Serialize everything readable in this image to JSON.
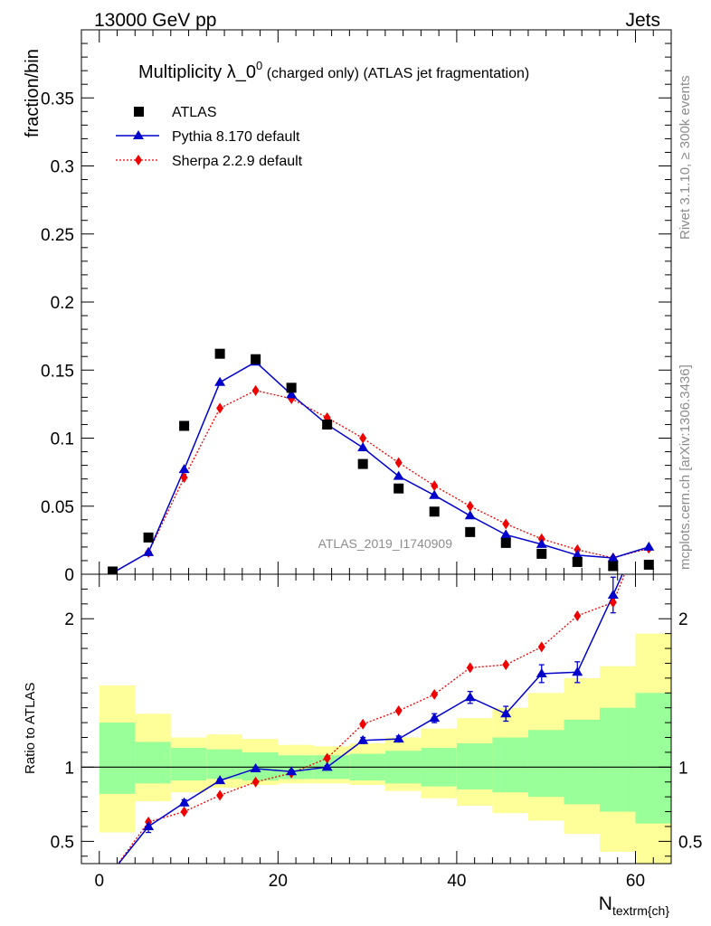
{
  "header": {
    "energy_label": "13000 GeV pp",
    "process_label": "Jets"
  },
  "side_labels": {
    "rivet": "Rivet 3.1.10, ≥ 300k events",
    "mcplots": "mcplots.cern.ch [arXiv:1306.3436]"
  },
  "chart_data": {
    "type": "scatter",
    "title_main": "Multiplicity λ_0",
    "title_sup": "0",
    "title_rest": " (charged only) (ATLAS jet fragmentation)",
    "analysis_label": "ATLAS_2019_I1740909",
    "xlabel_main": "N",
    "xlabel_sub": "textrm{ch}",
    "ylabel_top": "fraction/bin",
    "ylabel_bottom": "Ratio to ATLAS",
    "xlim": [
      -2,
      64
    ],
    "top_ylim": [
      0,
      0.4
    ],
    "bottom_ylim": [
      0.35,
      2.3
    ],
    "x_ticks": [
      0,
      20,
      40,
      60
    ],
    "x_tick_labels": [
      "0",
      "20",
      "40",
      "60"
    ],
    "top_y_ticks": [
      0,
      0.05,
      0.1,
      0.15,
      0.2,
      0.25,
      0.3,
      0.35
    ],
    "top_y_tick_labels": [
      "0",
      "0.05",
      "0.1",
      "0.15",
      "0.2",
      "0.25",
      "0.3",
      "0.35"
    ],
    "bottom_y_ticks": [
      0.5,
      1,
      2
    ],
    "bottom_y_tick_labels": [
      "0.5",
      "1",
      "2"
    ],
    "legend_position": "top-left",
    "bin_edges": [
      0,
      4,
      8,
      12,
      16,
      20,
      24,
      28,
      32,
      36,
      40,
      44,
      48,
      52,
      56,
      60,
      64
    ],
    "x": [
      1.5,
      5.5,
      9.5,
      13.5,
      17.5,
      21.5,
      25.5,
      29.5,
      33.5,
      37.5,
      41.5,
      45.5,
      49.5,
      53.5,
      57.5,
      61.5
    ],
    "series": [
      {
        "name": "ATLAS",
        "color": "#000000",
        "values": [
          0.002,
          0.027,
          0.109,
          0.162,
          0.158,
          0.137,
          0.11,
          0.081,
          0.063,
          0.046,
          0.031,
          0.023,
          0.015,
          0.009,
          0.006,
          0.007
        ]
      },
      {
        "name": "Pythia 8.170 default",
        "color": "#0000cc",
        "values": [
          0.001,
          0.016,
          0.077,
          0.141,
          0.156,
          0.132,
          0.11,
          0.093,
          0.072,
          0.058,
          0.043,
          0.029,
          0.022,
          0.014,
          0.012,
          0.02
        ],
        "ratio": [
          0.3,
          0.6,
          0.76,
          0.91,
          0.99,
          0.97,
          1.0,
          1.18,
          1.19,
          1.33,
          1.47,
          1.36,
          1.63,
          1.64,
          2.16,
          2.7
        ],
        "ratio_err": [
          0.0,
          0.04,
          0.02,
          0.01,
          0.01,
          0.01,
          0.01,
          0.02,
          0.02,
          0.03,
          0.04,
          0.05,
          0.06,
          0.07,
          0.12,
          0.0
        ]
      },
      {
        "name": "Sherpa 2.2.9 default",
        "color": "#ee0000",
        "values": [
          0.001,
          0.016,
          0.071,
          0.122,
          0.135,
          0.129,
          0.115,
          0.1,
          0.082,
          0.065,
          0.05,
          0.037,
          0.026,
          0.018,
          0.012,
          0.019
        ],
        "ratio": [
          0.3,
          0.63,
          0.7,
          0.81,
          0.9,
          0.96,
          1.06,
          1.29,
          1.38,
          1.49,
          1.67,
          1.69,
          1.81,
          2.02,
          2.11,
          2.7
        ]
      }
    ],
    "ratio_bands": {
      "green_lo": [
        0.82,
        0.89,
        0.91,
        0.92,
        0.91,
        0.92,
        0.92,
        0.91,
        0.89,
        0.87,
        0.85,
        0.83,
        0.8,
        0.75,
        0.7,
        0.62
      ],
      "green_hi": [
        1.3,
        1.17,
        1.13,
        1.12,
        1.1,
        1.08,
        1.08,
        1.09,
        1.11,
        1.13,
        1.16,
        1.2,
        1.25,
        1.32,
        1.4,
        1.5
      ],
      "yellow_lo": [
        0.56,
        0.77,
        0.83,
        0.86,
        0.88,
        0.89,
        0.89,
        0.88,
        0.84,
        0.79,
        0.74,
        0.69,
        0.64,
        0.55,
        0.43,
        0.3
      ],
      "yellow_hi": [
        1.55,
        1.36,
        1.2,
        1.22,
        1.19,
        1.15,
        1.14,
        1.16,
        1.2,
        1.26,
        1.33,
        1.4,
        1.5,
        1.6,
        1.68,
        1.9
      ],
      "green_color": "#99ff99",
      "yellow_color": "#ffff99"
    }
  }
}
